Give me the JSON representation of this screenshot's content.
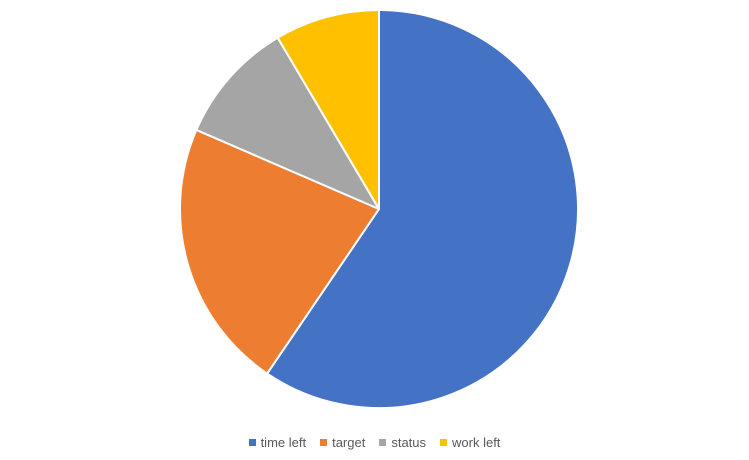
{
  "chart_data": {
    "type": "pie",
    "title": "",
    "categories": [
      "time left",
      "target",
      "status",
      "work left"
    ],
    "values": [
      59.5,
      22,
      10,
      8.5
    ],
    "colors": [
      "#4472C4",
      "#ED7D31",
      "#A5A5A5",
      "#FFC000"
    ],
    "start_angle_deg": 0,
    "direction": "clockwise",
    "legend_position": "bottom"
  },
  "legend": {
    "items": [
      {
        "label": "time left",
        "color": "#4472C4"
      },
      {
        "label": "target",
        "color": "#ED7D31"
      },
      {
        "label": "status",
        "color": "#A5A5A5"
      },
      {
        "label": "work left",
        "color": "#FFC000"
      }
    ]
  }
}
